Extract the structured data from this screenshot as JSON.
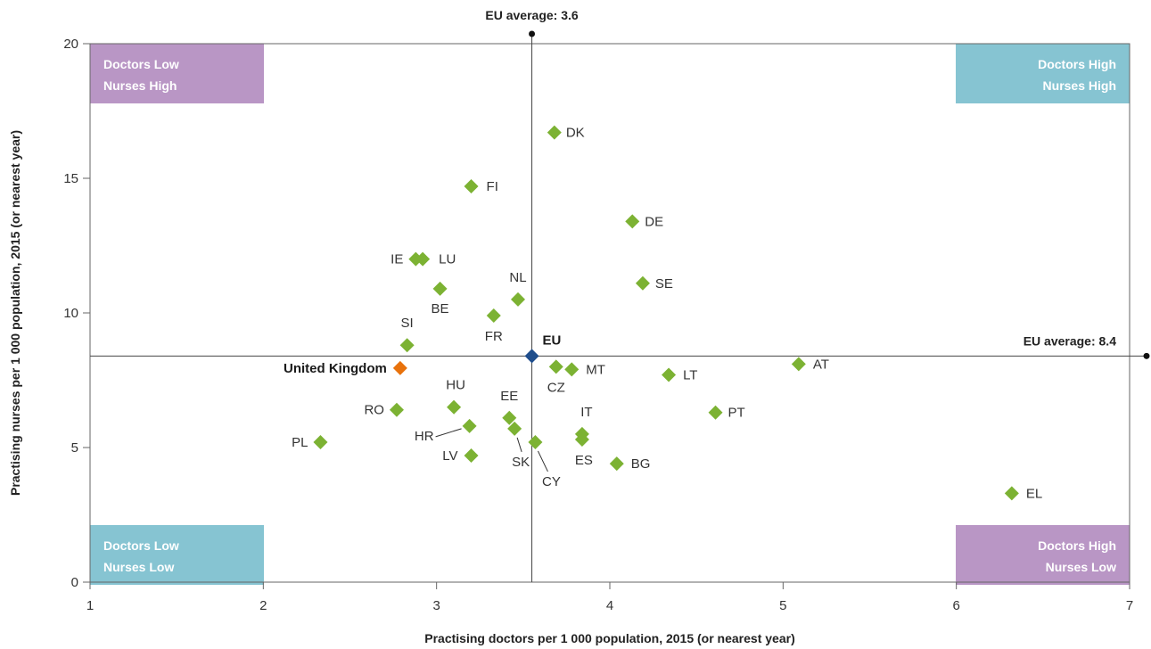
{
  "chart_data": {
    "type": "scatter",
    "xlabel": "Practising doctors per 1 000 population, 2015 (or nearest year)",
    "ylabel": "Practising nurses per 1 000 population, 2015 (or nearest year)",
    "xlim": [
      1,
      7
    ],
    "ylim": [
      0,
      20
    ],
    "x_ticks": [
      "1",
      "2",
      "3",
      "4",
      "5",
      "6",
      "7"
    ],
    "y_ticks": [
      "0",
      "5",
      "10",
      "15",
      "20"
    ],
    "grid": false,
    "reference_lines": {
      "x": {
        "value": 3.6,
        "label": "EU average: 3.6"
      },
      "y": {
        "value": 8.4,
        "label": "EU average: 8.4"
      }
    },
    "quadrants": [
      {
        "line1": "Doctors Low",
        "line2": "Nurses High",
        "position": "top-left",
        "color": "#b996c5"
      },
      {
        "line1": "Doctors High",
        "line2": "Nurses High",
        "position": "top-right",
        "color": "#86c4d2"
      },
      {
        "line1": "Doctors Low",
        "line2": "Nurses Low",
        "position": "bottom-left",
        "color": "#86c4d2"
      },
      {
        "line1": "Doctors High",
        "line2": "Nurses Low",
        "position": "bottom-right",
        "color": "#b996c5"
      }
    ],
    "colors": {
      "country": "#7cb233",
      "highlight": "#e8720c",
      "eu": "#1f4e8c"
    },
    "points": [
      {
        "label": "DK",
        "x": 3.68,
        "y": 16.7,
        "kind": "country"
      },
      {
        "label": "FI",
        "x": 3.2,
        "y": 14.7,
        "kind": "country"
      },
      {
        "label": "DE",
        "x": 4.13,
        "y": 13.4,
        "kind": "country"
      },
      {
        "label": "IE",
        "x": 2.88,
        "y": 12.0,
        "kind": "country"
      },
      {
        "label": "LU",
        "x": 2.92,
        "y": 12.0,
        "kind": "country"
      },
      {
        "label": "SE",
        "x": 4.19,
        "y": 11.1,
        "kind": "country"
      },
      {
        "label": "BE",
        "x": 3.02,
        "y": 10.9,
        "kind": "country"
      },
      {
        "label": "NL",
        "x": 3.47,
        "y": 10.5,
        "kind": "country"
      },
      {
        "label": "FR",
        "x": 3.33,
        "y": 9.9,
        "kind": "country"
      },
      {
        "label": "SI",
        "x": 2.83,
        "y": 8.8,
        "kind": "country"
      },
      {
        "label": "EU",
        "x": 3.55,
        "y": 8.4,
        "kind": "eu"
      },
      {
        "label": "United Kingdom",
        "x": 2.79,
        "y": 7.95,
        "kind": "highlight"
      },
      {
        "label": "AT",
        "x": 5.09,
        "y": 8.1,
        "kind": "country"
      },
      {
        "label": "CZ",
        "x": 3.69,
        "y": 8.0,
        "kind": "country"
      },
      {
        "label": "MT",
        "x": 3.78,
        "y": 7.9,
        "kind": "country"
      },
      {
        "label": "LT",
        "x": 4.34,
        "y": 7.7,
        "kind": "country"
      },
      {
        "label": "HU",
        "x": 3.1,
        "y": 6.5,
        "kind": "country"
      },
      {
        "label": "RO",
        "x": 2.77,
        "y": 6.4,
        "kind": "country"
      },
      {
        "label": "PT",
        "x": 4.61,
        "y": 6.3,
        "kind": "country"
      },
      {
        "label": "EE",
        "x": 3.42,
        "y": 6.1,
        "kind": "country"
      },
      {
        "label": "HR",
        "x": 3.19,
        "y": 5.8,
        "kind": "country"
      },
      {
        "label": "SK",
        "x": 3.45,
        "y": 5.7,
        "kind": "country"
      },
      {
        "label": "IT",
        "x": 3.84,
        "y": 5.5,
        "kind": "country"
      },
      {
        "label": "ES",
        "x": 3.84,
        "y": 5.3,
        "kind": "country"
      },
      {
        "label": "PL",
        "x": 2.33,
        "y": 5.2,
        "kind": "country"
      },
      {
        "label": "CY",
        "x": 3.57,
        "y": 5.2,
        "kind": "country"
      },
      {
        "label": "LV",
        "x": 3.2,
        "y": 4.7,
        "kind": "country"
      },
      {
        "label": "BG",
        "x": 4.04,
        "y": 4.4,
        "kind": "country"
      },
      {
        "label": "EL",
        "x": 6.32,
        "y": 3.3,
        "kind": "country"
      }
    ]
  }
}
